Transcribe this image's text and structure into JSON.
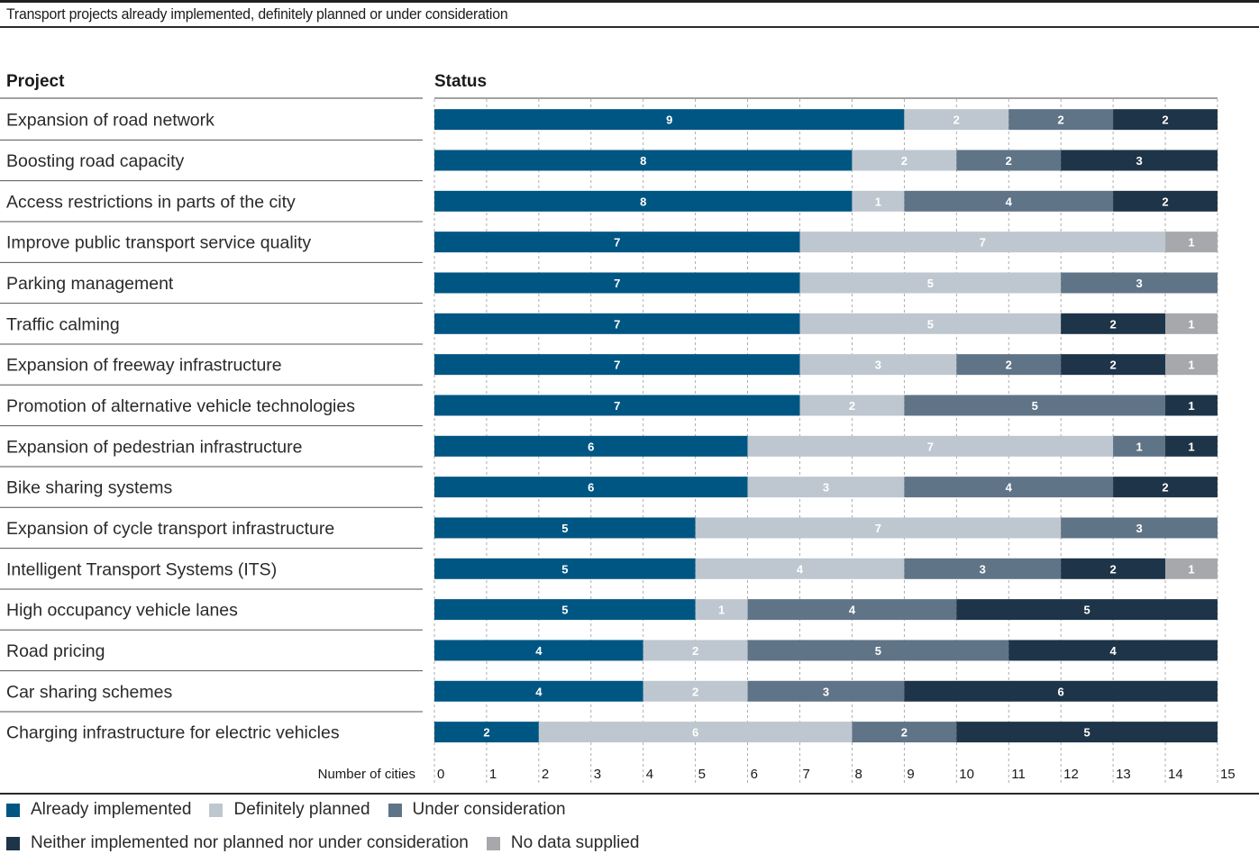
{
  "subtitle": "Transport projects already implemented, definitely planned or under consideration",
  "chart_data": {
    "type": "bar",
    "orientation": "horizontal-stacked",
    "column_headers": {
      "project": "Project",
      "status": "Status"
    },
    "xlabel": "Number of cities",
    "xlim": [
      0,
      15
    ],
    "xticks": [
      "0",
      "1",
      "2",
      "3",
      "4",
      "5",
      "6",
      "7",
      "8",
      "9",
      "10",
      "11",
      "12",
      "13",
      "14",
      "15"
    ],
    "grid": "vertical dashed",
    "legend_position": "bottom-left",
    "categories": [
      "Expansion of road network",
      "Boosting road capacity",
      "Access restrictions in parts of the city",
      "Improve public transport service quality",
      "Parking management",
      "Traffic calming",
      "Expansion of freeway infrastructure",
      "Promotion of alternative vehicle technologies",
      "Expansion of pedestrian infrastructure",
      "Bike sharing systems",
      "Expansion of cycle transport infrastructure",
      "Intelligent Transport Systems (ITS)",
      "High occupancy vehicle lanes",
      "Road pricing",
      "Car sharing schemes",
      "Charging infrastructure for electric vehicles"
    ],
    "series": [
      {
        "name": "Already implemented",
        "color": "#005683",
        "label_color": "#ffffff",
        "values": [
          9,
          8,
          8,
          7,
          7,
          7,
          7,
          7,
          6,
          6,
          5,
          5,
          5,
          4,
          4,
          2
        ]
      },
      {
        "name": "Definitely planned",
        "color": "#bec7d0",
        "label_color": "#ffffff",
        "values": [
          2,
          2,
          1,
          7,
          5,
          5,
          3,
          2,
          7,
          3,
          7,
          4,
          1,
          2,
          2,
          6
        ]
      },
      {
        "name": "Under consideration",
        "color": "#607487",
        "label_color": "#ffffff",
        "values": [
          2,
          2,
          4,
          0,
          3,
          0,
          2,
          5,
          1,
          4,
          3,
          3,
          4,
          5,
          3,
          2
        ]
      },
      {
        "name": "Neither implemented nor planned nor under consideration",
        "color": "#1e3448",
        "label_color": "#ffffff",
        "values": [
          2,
          3,
          2,
          0,
          0,
          2,
          2,
          1,
          1,
          2,
          0,
          2,
          5,
          4,
          6,
          5
        ]
      },
      {
        "name": "No data supplied",
        "color": "#a6a8ab",
        "label_color": "#ffffff",
        "values": [
          0,
          0,
          0,
          1,
          0,
          1,
          1,
          0,
          0,
          0,
          0,
          1,
          0,
          0,
          0,
          0
        ]
      }
    ]
  }
}
